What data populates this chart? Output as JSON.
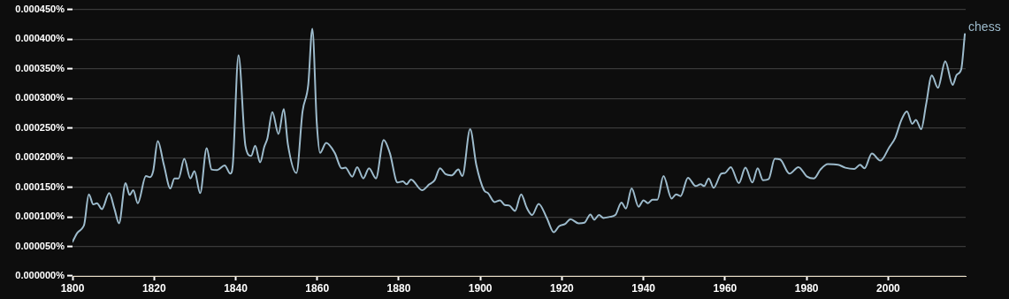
{
  "chart_data": {
    "type": "line",
    "xlim": [
      1800,
      2019
    ],
    "xticks": [
      1800,
      1820,
      1840,
      1860,
      1880,
      1900,
      1920,
      1940,
      1960,
      1980,
      2000
    ],
    "ylim": [
      0,
      0.00045
    ],
    "yticks": [
      {
        "value": 0,
        "label": "0.000000%"
      },
      {
        "value": 5e-05,
        "label": "0.000050%"
      },
      {
        "value": 0.0001,
        "label": "0.000100%"
      },
      {
        "value": 0.00015,
        "label": "0.000150%"
      },
      {
        "value": 0.0002,
        "label": "0.000200%"
      },
      {
        "value": 0.00025,
        "label": "0.000250%"
      },
      {
        "value": 0.0003,
        "label": "0.000300%"
      },
      {
        "value": 0.00035,
        "label": "0.000350%"
      },
      {
        "value": 0.0004,
        "label": "0.000400%"
      },
      {
        "value": 0.00045,
        "label": "0.000450%"
      }
    ],
    "grid": "y",
    "legend": false,
    "marker": "none",
    "line_style": "solid",
    "series": [
      {
        "name": "chess",
        "color": "#9dbbcc",
        "x": [
          1800,
          1801.2,
          1802.3,
          1802.9,
          1804,
          1805.1,
          1806,
          1807.2,
          1809,
          1810.3,
          1811.4,
          1813,
          1814,
          1814.9,
          1816,
          1818,
          1819,
          1819.8,
          1820.9,
          1822.4,
          1824,
          1825,
          1826,
          1827.4,
          1828.9,
          1829.9,
          1831.3,
          1832.9,
          1834.1,
          1835.5,
          1837.3,
          1838.7,
          1839.3,
          1840.7,
          1842.4,
          1843.8,
          1844.8,
          1846,
          1847,
          1847.8,
          1849,
          1850.5,
          1851.8,
          1852.8,
          1854.9,
          1856.4,
          1857.8,
          1858.8,
          1859.9,
          1860.7,
          1862.2,
          1864.3,
          1866,
          1866.9,
          1868.6,
          1869.8,
          1871.3,
          1872.7,
          1874.4,
          1876.3,
          1877.8,
          1879.7,
          1881,
          1881.9,
          1883,
          1885.7,
          1887.5,
          1888.8,
          1890.1,
          1891.5,
          1893,
          1894.6,
          1895.6,
          1897.5,
          1899,
          1900.9,
          1901.9,
          1903.5,
          1904.8,
          1906,
          1907.1,
          1908.5,
          1910,
          1911.4,
          1912.7,
          1914.3,
          1916.3,
          1918,
          1919.3,
          1920.8,
          1922.1,
          1924.1,
          1925.5,
          1927,
          1927.9,
          1929.1,
          1930.2,
          1931.7,
          1933.1,
          1934.6,
          1935.7,
          1937.1,
          1938.8,
          1940,
          1941.1,
          1942.2,
          1943.4,
          1944.9,
          1946.9,
          1948,
          1949.1,
          1950.9,
          1952.8,
          1954,
          1954.9,
          1956,
          1957.2,
          1959.1,
          1960,
          1961.4,
          1963.4,
          1965,
          1966.7,
          1968,
          1969.3,
          1970.7,
          1972.2,
          1973.5,
          1975.8,
          1978,
          1980.1,
          1981.8,
          1983.4,
          1985.2,
          1987.7,
          1989.5,
          1991.7,
          1993.1,
          1994.2,
          1996,
          1998.1,
          2000.3,
          2001.7,
          2003.2,
          2004.6,
          2005.9,
          2006.8,
          2008.1,
          2009.3,
          2010.7,
          2012.2,
          2014,
          2015.8,
          2016.8,
          2017.9,
          2018.8
        ],
        "values": [
          5.8e-05,
          7.3e-05,
          8e-05,
          8.8e-05,
          0.000138,
          0.000121,
          0.000123,
          0.000113,
          0.00014,
          0.000113,
          8.9e-05,
          0.000157,
          0.000137,
          0.000145,
          0.000123,
          0.000169,
          0.000167,
          0.000178,
          0.000228,
          0.000188,
          0.000148,
          0.000165,
          0.000165,
          0.000198,
          0.000165,
          0.000177,
          0.00014,
          0.000216,
          0.00018,
          0.000179,
          0.000187,
          0.000173,
          0.000188,
          0.000373,
          0.00022,
          0.000203,
          0.00022,
          0.000192,
          0.000218,
          0.000233,
          0.000277,
          0.00024,
          0.000282,
          0.000223,
          0.000174,
          0.000278,
          0.000323,
          0.000418,
          0.000258,
          0.000208,
          0.000225,
          0.000208,
          0.000182,
          0.000183,
          0.000168,
          0.000184,
          0.000165,
          0.000182,
          0.000165,
          0.00023,
          0.000208,
          0.000158,
          0.00016,
          0.000155,
          0.000163,
          0.000145,
          0.000155,
          0.000162,
          0.000182,
          0.000172,
          0.00017,
          0.00018,
          0.000169,
          0.000248,
          0.000188,
          0.000145,
          0.00014,
          0.000125,
          0.000128,
          0.00012,
          0.000119,
          0.00011,
          0.000138,
          0.000115,
          0.000103,
          0.000122,
          9.8e-05,
          7.4e-05,
          8.4e-05,
          8.8e-05,
          9.6e-05,
          8.9e-05,
          9e-05,
          0.000104,
          9.5e-05,
          0.000103,
          9.8e-05,
          0.0001,
          0.000103,
          0.000124,
          0.000114,
          0.000148,
          0.000117,
          0.000128,
          0.000123,
          0.000129,
          0.000129,
          0.000169,
          0.000131,
          0.000138,
          0.000135,
          0.000166,
          0.000152,
          0.000155,
          0.000152,
          0.000165,
          0.000149,
          0.000173,
          0.000174,
          0.000184,
          0.000157,
          0.000183,
          0.000158,
          0.000182,
          0.000162,
          0.000164,
          0.000198,
          0.000197,
          0.000173,
          0.000184,
          0.000168,
          0.000165,
          0.00018,
          0.000189,
          0.000188,
          0.000183,
          0.000181,
          0.000188,
          0.000182,
          0.000207,
          0.000195,
          0.000218,
          0.000233,
          0.000263,
          0.000278,
          0.000257,
          0.000264,
          0.000248,
          0.00029,
          0.000339,
          0.000318,
          0.000363,
          0.000323,
          0.00034,
          0.000349,
          0.000409
        ]
      }
    ]
  }
}
